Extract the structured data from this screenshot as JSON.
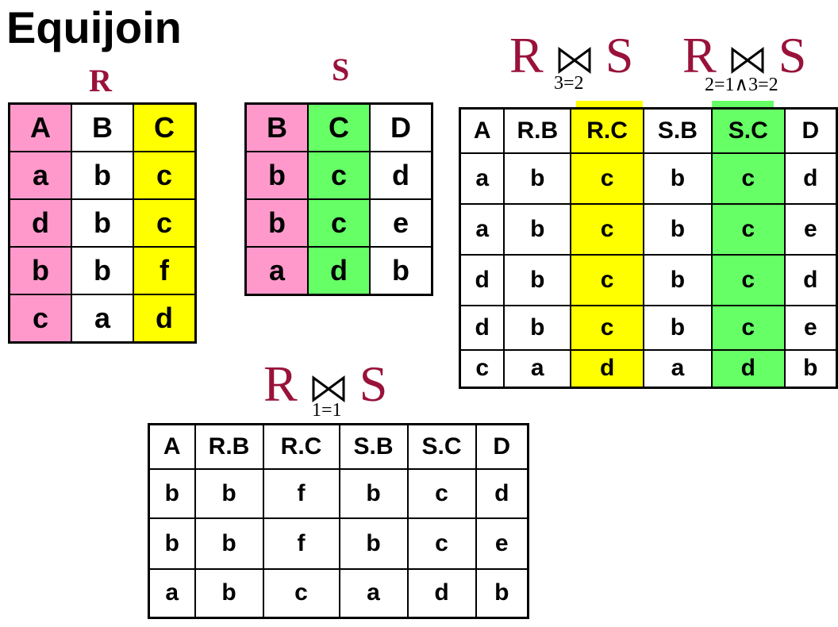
{
  "title": "Equijoin",
  "colors": {
    "join_symbol": "#99123a",
    "pink": "#ff99cc",
    "yellow": "#ffff00",
    "green": "#66ff66"
  },
  "relation_r": {
    "label": "R",
    "headers": [
      "A",
      "B",
      "C"
    ],
    "rows": [
      [
        "a",
        "b",
        "c"
      ],
      [
        "d",
        "b",
        "c"
      ],
      [
        "b",
        "b",
        "f"
      ],
      [
        "c",
        "a",
        "d"
      ]
    ]
  },
  "relation_s": {
    "label": "S",
    "headers": [
      "B",
      "C",
      "D"
    ],
    "rows": [
      [
        "b",
        "c",
        "d"
      ],
      [
        "b",
        "c",
        "e"
      ],
      [
        "a",
        "d",
        "b"
      ]
    ]
  },
  "join_a": {
    "left": "R",
    "right": "S",
    "condition": "3=2"
  },
  "join_b": {
    "left": "R",
    "right": "S",
    "condition": "2=1∧3=2"
  },
  "join_c": {
    "left": "R",
    "right": "S",
    "condition": "1=1"
  },
  "result_top": {
    "headers": [
      "A",
      "R.B",
      "R.C",
      "S.B",
      "S.C",
      "D"
    ],
    "rows": [
      [
        "a",
        "b",
        "c",
        "b",
        "c",
        "d"
      ],
      [
        "a",
        "b",
        "c",
        "b",
        "c",
        "e"
      ],
      [
        "d",
        "b",
        "c",
        "b",
        "c",
        "d"
      ],
      [
        "d",
        "b",
        "c",
        "b",
        "c",
        "e"
      ],
      [
        "c",
        "a",
        "d",
        "a",
        "d",
        "b"
      ]
    ]
  },
  "result_bottom": {
    "headers": [
      "A",
      "R.B",
      "R.C",
      "S.B",
      "S.C",
      "D"
    ],
    "rows": [
      [
        "b",
        "b",
        "f",
        "b",
        "c",
        "d"
      ],
      [
        "b",
        "b",
        "f",
        "b",
        "c",
        "e"
      ],
      [
        "a",
        "b",
        "c",
        "a",
        "d",
        "b"
      ]
    ]
  }
}
